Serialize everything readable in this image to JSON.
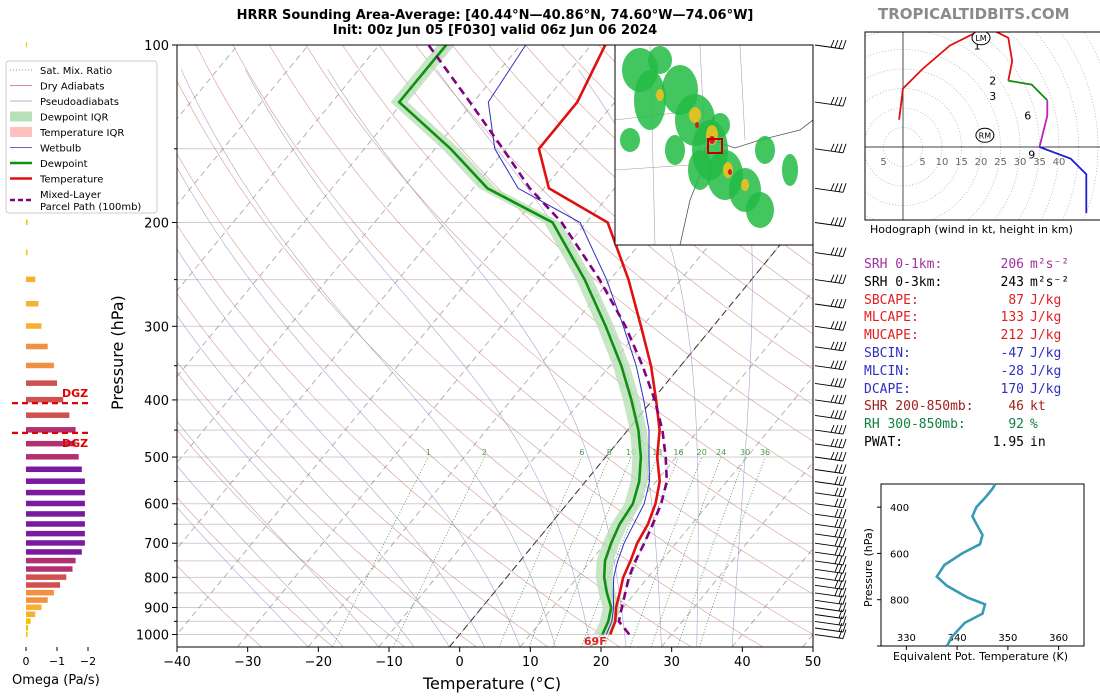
{
  "header": {
    "title_line1": "HRRR Sounding Area-Average: [40.44°N—40.86°N, 74.60°W—74.06°W]",
    "title_line2": "Init: 00z Jun 05 [F030] valid 06z Jun 06 2024",
    "brand": "TROPICALTIDBITS.COM"
  },
  "legend": [
    {
      "label": "Sat. Mix. Ratio",
      "color": "#5a8f5a",
      "style": "dotted"
    },
    {
      "label": "Dry Adiabats",
      "color": "#c86464",
      "style": "thin"
    },
    {
      "label": "Pseudoadiabats",
      "color": "#9696c8",
      "style": "thin"
    },
    {
      "label": "Dewpoint IQR",
      "color": "#b8e0b8",
      "style": "box"
    },
    {
      "label": "Temperature IQR",
      "color": "#ffc0c0",
      "style": "box"
    },
    {
      "label": "Wetbulb",
      "color": "#3030c0",
      "style": "thin"
    },
    {
      "label": "Dewpoint",
      "color": "#109010",
      "style": "thick"
    },
    {
      "label": "Temperature",
      "color": "#e01010",
      "style": "thick"
    },
    {
      "label": "Mixed-Layer\nParcel Path (100mb)",
      "color": "#800080",
      "style": "dashed"
    }
  ],
  "omega_panel": {
    "xlabel": "Omega (Pa/s)",
    "ticks": [
      "0",
      "−1",
      "−2"
    ],
    "dgz_label": "DGZ"
  },
  "chart_data": {
    "type": "line",
    "title": "HRRR Sounding Area-Average: [40.44°N—40.86°N, 74.60°W—74.06°W]",
    "xlabel": "Temperature (°C)",
    "ylabel": "Pressure (hPa)",
    "xlim": [
      -40,
      50
    ],
    "ylim": [
      1050,
      100
    ],
    "x_ticks": [
      "−40",
      "−30",
      "−20",
      "−10",
      "0",
      "10",
      "20",
      "30",
      "40",
      "50"
    ],
    "y_ticks": [
      "100",
      "200",
      "300",
      "400",
      "500",
      "600",
      "700",
      "800",
      "900",
      "1000"
    ],
    "surface_temp_label": "69F",
    "mixing_ratio_labels": [
      "1",
      "2",
      "6",
      "8",
      "10",
      "13",
      "16",
      "20",
      "24",
      "30",
      "36"
    ],
    "series": [
      {
        "name": "Temperature",
        "color": "#e01010",
        "points": [
          [
            21.3,
            1000
          ],
          [
            20.5,
            950
          ],
          [
            19.0,
            900
          ],
          [
            17.8,
            850
          ],
          [
            16.5,
            800
          ],
          [
            15.6,
            750
          ],
          [
            14.5,
            700
          ],
          [
            13.8,
            650
          ],
          [
            12.5,
            600
          ],
          [
            10.5,
            550
          ],
          [
            7.3,
            500
          ],
          [
            4.5,
            450
          ],
          [
            0.5,
            400
          ],
          [
            -4.2,
            350
          ],
          [
            -10.2,
            300
          ],
          [
            -17.4,
            250
          ],
          [
            -27.0,
            200
          ],
          [
            -39.3,
            175
          ],
          [
            -45.3,
            150
          ],
          [
            -45.3,
            125
          ],
          [
            -48.0,
            100
          ]
        ]
      },
      {
        "name": "Dewpoint",
        "color": "#109010",
        "points": [
          [
            20.2,
            1000
          ],
          [
            19.5,
            950
          ],
          [
            18.3,
            900
          ],
          [
            16.0,
            850
          ],
          [
            13.8,
            800
          ],
          [
            12.0,
            750
          ],
          [
            10.8,
            700
          ],
          [
            9.8,
            650
          ],
          [
            9.3,
            600
          ],
          [
            7.6,
            550
          ],
          [
            5.0,
            500
          ],
          [
            1.5,
            450
          ],
          [
            -3.0,
            400
          ],
          [
            -8.4,
            350
          ],
          [
            -15.2,
            300
          ],
          [
            -23.6,
            250
          ],
          [
            -34.8,
            200
          ],
          [
            -48.0,
            175
          ],
          [
            -57.8,
            150
          ],
          [
            -70.5,
            125
          ],
          [
            -70.5,
            100
          ]
        ]
      },
      {
        "name": "Mixed-Layer Parcel Path (100mb)",
        "color": "#800080",
        "points": [
          [
            24.0,
            1000
          ],
          [
            21.0,
            950
          ],
          [
            19.8,
            900
          ],
          [
            18.6,
            850
          ],
          [
            17.3,
            800
          ],
          [
            16.3,
            750
          ],
          [
            15.5,
            700
          ],
          [
            14.5,
            650
          ],
          [
            13.3,
            600
          ],
          [
            11.5,
            550
          ],
          [
            8.5,
            500
          ],
          [
            4.9,
            450
          ],
          [
            0.3,
            400
          ],
          [
            -5.4,
            350
          ],
          [
            -12.4,
            300
          ],
          [
            -21.5,
            250
          ],
          [
            -33.5,
            200
          ],
          [
            -42.0,
            175
          ],
          [
            -50.4,
            150
          ],
          [
            -60.5,
            125
          ],
          [
            -73.0,
            100
          ]
        ]
      }
    ]
  },
  "inset_map": {
    "label": "radar reflectivity inset map"
  },
  "hodograph": {
    "label": "Hodograph (wind in kt, height in km)",
    "ring_labels": [
      "5",
      "5",
      "10",
      "15",
      "20",
      "25",
      "30",
      "35",
      "40"
    ],
    "height_labels": [
      "1",
      "2",
      "3",
      "6",
      "9"
    ],
    "lm_label": "LM",
    "rm_label": "RM",
    "chart_data": {
      "type": "line",
      "series": [
        {
          "name": "0-1 km",
          "color": "#e01010",
          "points": [
            [
              -1,
              7
            ],
            [
              0,
              15
            ],
            [
              5,
              20
            ],
            [
              12,
              26
            ],
            [
              20,
              30
            ],
            [
              23,
              30
            ]
          ]
        },
        {
          "name": "1-3 km",
          "color": "#e01010",
          "points": [
            [
              23,
              30
            ],
            [
              27,
              28
            ],
            [
              28,
              22
            ],
            [
              27,
              17
            ]
          ]
        },
        {
          "name": "3-6 km",
          "color": "#109010",
          "points": [
            [
              27,
              17
            ],
            [
              33,
              16
            ],
            [
              37,
              12
            ]
          ]
        },
        {
          "name": "6-9 km",
          "color": "#c020c0",
          "points": [
            [
              37,
              12
            ],
            [
              37,
              8
            ],
            [
              35,
              0
            ]
          ]
        },
        {
          "name": "9+ km",
          "color": "#2020d0",
          "points": [
            [
              35,
              0
            ],
            [
              43,
              -3
            ],
            [
              47,
              -7
            ],
            [
              47,
              -17
            ]
          ]
        }
      ]
    }
  },
  "indices": [
    {
      "label": "SRH 0-1km:",
      "value": "206",
      "unit": "m²s⁻²",
      "color": "#a030a0"
    },
    {
      "label": "SRH 0-3km:",
      "value": "243",
      "unit": "m²s⁻²",
      "color": "#000000"
    },
    {
      "label": "SBCAPE:",
      "value": "87",
      "unit": "J/kg",
      "color": "#e02020"
    },
    {
      "label": "MLCAPE:",
      "value": "133",
      "unit": "J/kg",
      "color": "#e02020"
    },
    {
      "label": "MUCAPE:",
      "value": "212",
      "unit": "J/kg",
      "color": "#e02020"
    },
    {
      "label": "SBCIN:",
      "value": "-47",
      "unit": "J/kg",
      "color": "#3030c0"
    },
    {
      "label": "MLCIN:",
      "value": "-28",
      "unit": "J/kg",
      "color": "#3030c0"
    },
    {
      "label": "DCAPE:",
      "value": "170",
      "unit": "J/kg",
      "color": "#3030c0"
    },
    {
      "label": "SHR 200-850mb:",
      "value": "46",
      "unit": "kt",
      "color": "#a02020"
    },
    {
      "label": "RH 300-850mb:",
      "value": "92",
      "unit": "%",
      "color": "#108040"
    },
    {
      "label": "PWAT:",
      "value": "1.95",
      "unit": "in",
      "color": "#000000"
    }
  ],
  "theta_e_panel": {
    "xlabel": "Equivalent Pot. Temperature (K)",
    "ylabel": "Pressure (hPa)",
    "x_ticks": [
      "330",
      "340",
      "350",
      "360"
    ],
    "y_ticks": [
      "400",
      "600",
      "800"
    ],
    "chart_data": {
      "type": "line",
      "xlim": [
        325,
        365
      ],
      "ylim": [
        1000,
        300
      ],
      "series": [
        {
          "name": "Theta-E",
          "color": "#3a9ab5",
          "points": [
            [
              338.0,
              1000
            ],
            [
              339.0,
              960
            ],
            [
              341.5,
              900
            ],
            [
              345.0,
              860
            ],
            [
              345.5,
              820
            ],
            [
              342.0,
              790
            ],
            [
              338.0,
              740
            ],
            [
              336.0,
              700
            ],
            [
              337.5,
              650
            ],
            [
              341.0,
              600
            ],
            [
              344.5,
              560
            ],
            [
              345.0,
              520
            ],
            [
              344.0,
              480
            ],
            [
              343.0,
              440
            ],
            [
              343.8,
              400
            ],
            [
              345.5,
              360
            ],
            [
              347.0,
              320
            ],
            [
              347.5,
              300
            ]
          ]
        }
      ]
    }
  }
}
